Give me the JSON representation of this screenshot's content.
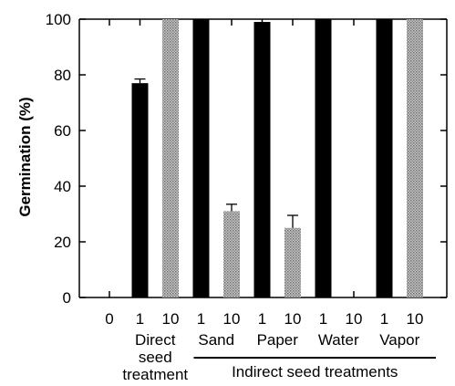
{
  "chart_data": {
    "type": "bar",
    "ylabel": "Germination (%)",
    "ylim": [
      0,
      100
    ],
    "yticks": [
      0,
      20,
      40,
      60,
      80,
      100
    ],
    "grid": false,
    "categories": [
      "0",
      "1",
      "10",
      "1",
      "10",
      "1",
      "10",
      "1",
      "10",
      "1",
      "10"
    ],
    "values": [
      0,
      77,
      100,
      100,
      31,
      99,
      25,
      100,
      0,
      100,
      100
    ],
    "errors": [
      0,
      1.5,
      0,
      0,
      2.5,
      0,
      4.5,
      0,
      0,
      0,
      0
    ],
    "bar_style": [
      "none",
      "solid",
      "hatched",
      "solid",
      "hatched",
      "solid",
      "hatched",
      "solid",
      "hatched",
      "solid",
      "hatched"
    ],
    "group_labels": [
      {
        "lines": [
          "Direct",
          "seed",
          "treatment"
        ],
        "categories": [
          1,
          2
        ]
      },
      {
        "lines": [
          "Sand"
        ],
        "categories": [
          3,
          4
        ]
      },
      {
        "lines": [
          "Paper"
        ],
        "categories": [
          5,
          6
        ]
      },
      {
        "lines": [
          "Water"
        ],
        "categories": [
          7,
          8
        ]
      },
      {
        "lines": [
          "Vapor"
        ],
        "categories": [
          9,
          10
        ]
      }
    ],
    "bracket_label": "Indirect seed treatments",
    "colors": {
      "solid": "#000000",
      "hatched": "#a8a8a8",
      "axis": "#000000"
    }
  }
}
